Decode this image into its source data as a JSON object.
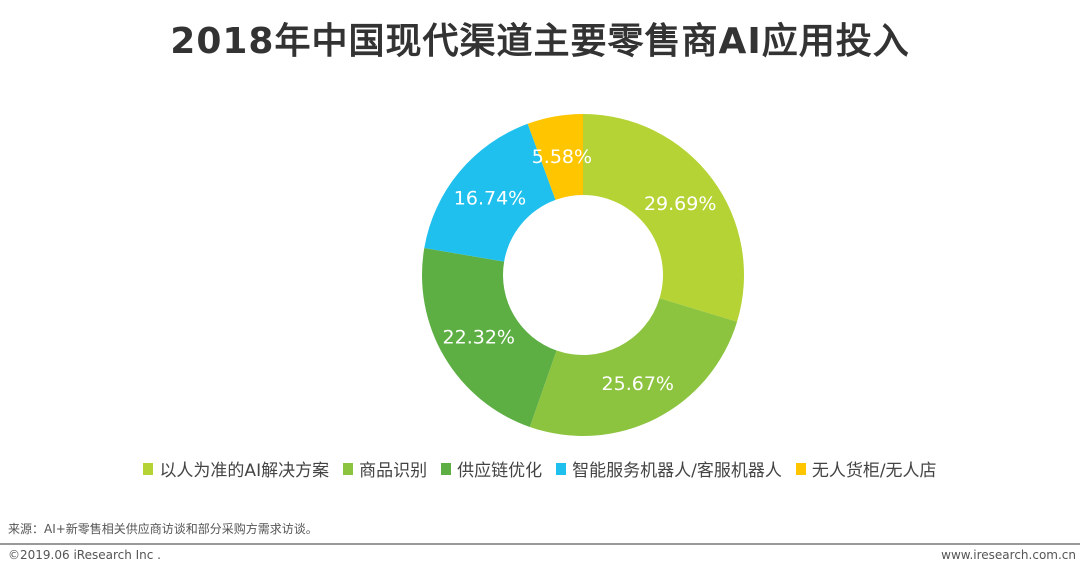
{
  "chart_data": {
    "type": "pie",
    "donut": true,
    "title": "2018年中国现代渠道主要零售商AI应用投入",
    "legend_position": "bottom",
    "start": "top-clockwise",
    "categories": [
      "以人为准的AI解决方案",
      "商品识别",
      "供应链优化",
      "智能服务机器人/客服机器人",
      "无人货柜/无人店"
    ],
    "values": [
      29.69,
      25.67,
      22.32,
      16.74,
      5.58
    ],
    "labels": [
      "29.69%",
      "25.67%",
      "22.32%",
      "16.74%",
      "5.58%"
    ],
    "colors": [
      "#b5d334",
      "#8cc43f",
      "#5daf44",
      "#1fc0ee",
      "#ffc600"
    ]
  },
  "footer": {
    "source": "来源：AI+新零售相关供应商访谈和部分采购方需求访谈。",
    "copyright": "©2019.06 iResearch Inc .",
    "website": "www.iresearch.com.cn"
  }
}
